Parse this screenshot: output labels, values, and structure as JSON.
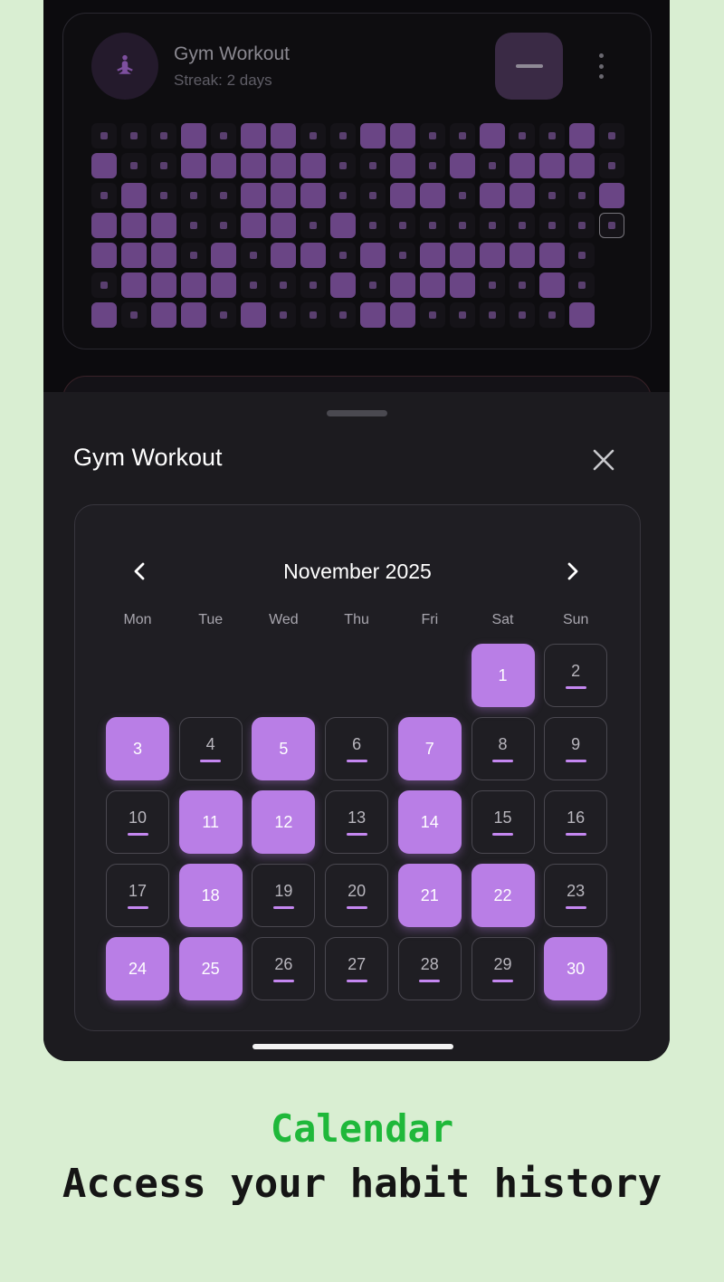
{
  "habit_card": {
    "title": "Gym Workout",
    "streak": "Streak: 2 days",
    "icon": "meditation-icon",
    "grid_rows": [
      "000101100110010010",
      "100111110010101110",
      "010001110011011001",
      "11100110100000000T",
      "11101011010111110-",
      "01111000101110010-",
      "10110100011000001-"
    ]
  },
  "sheet": {
    "title": "Gym Workout",
    "calendar": {
      "month": "November 2025",
      "weekdays": [
        "Mon",
        "Tue",
        "Wed",
        "Thu",
        "Fri",
        "Sat",
        "Sun"
      ],
      "first_weekday_index": 5,
      "days_in_month": 30,
      "completed_days": [
        1,
        3,
        5,
        7,
        11,
        12,
        14,
        18,
        21,
        22,
        24,
        25,
        30
      ]
    }
  },
  "caption": {
    "title": "Calendar",
    "subtitle": "Access your habit history"
  },
  "colors": {
    "accent": "#b97ee6",
    "grid_filled": "#6a4585",
    "caption_green": "#1fb83a",
    "background": "#d9eed2"
  }
}
